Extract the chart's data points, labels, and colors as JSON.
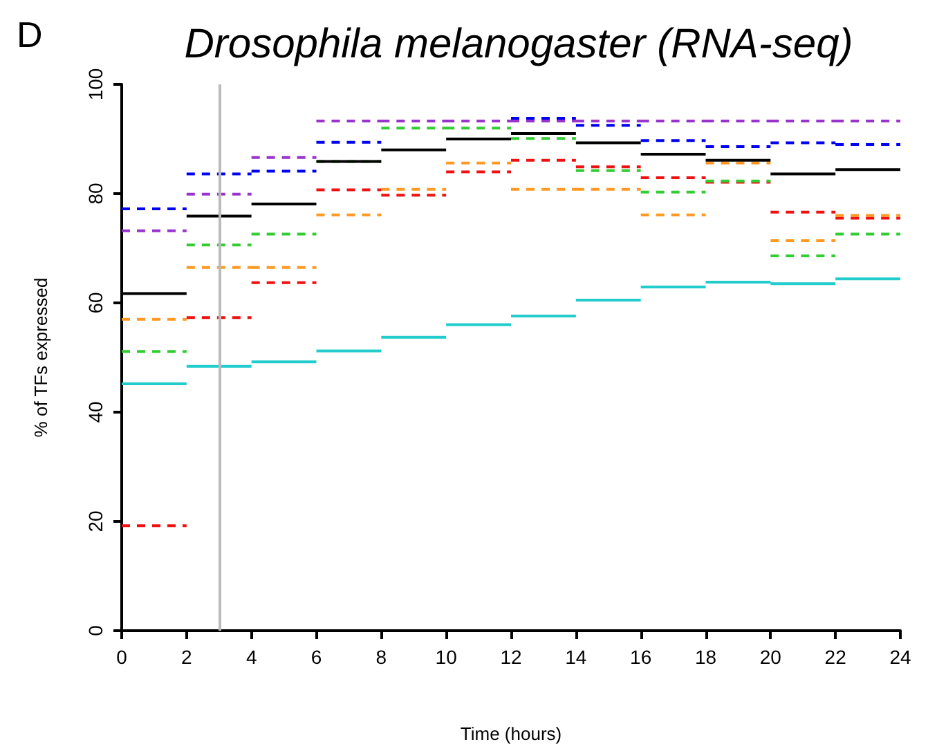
{
  "chart_data": {
    "type": "step",
    "title": "Drosophila melanogaster (RNA-seq)",
    "xlabel": "Time (hours)",
    "ylabel": "% of TFs expressed",
    "annotations": [
      "D"
    ],
    "x": [
      0,
      2,
      4,
      6,
      8,
      10,
      12,
      14,
      16,
      18,
      20,
      22,
      24
    ],
    "xlim": [
      0,
      24
    ],
    "xticks": [
      0,
      2,
      4,
      6,
      8,
      10,
      12,
      14,
      16,
      18,
      20,
      22,
      24
    ],
    "ylim": [
      0,
      100
    ],
    "yticks": [
      0,
      20,
      40,
      60,
      80,
      100
    ],
    "grid": false,
    "marker": "none",
    "ref_lines": [
      {
        "axis": "x",
        "value": 3,
        "color": "#bbbbbb"
      }
    ],
    "series": [
      {
        "color": "#22cccc",
        "line_style": "solid",
        "values": [
          45.2,
          48.4,
          49.2,
          51.2,
          53.7,
          56.0,
          57.6,
          60.5,
          62.9,
          63.8,
          63.5,
          64.4,
          64.4
        ]
      },
      {
        "color": "#ee1111",
        "line_style": "dashed",
        "values": [
          19.2,
          57.3,
          63.7,
          80.7,
          79.7,
          84.0,
          86.1,
          84.9,
          82.9,
          82.1,
          76.6,
          75.5,
          75.5
        ]
      },
      {
        "color": "#ff9922",
        "line_style": "dashed",
        "values": [
          57.0,
          66.5,
          66.5,
          76.1,
          80.8,
          85.6,
          80.8,
          80.8,
          76.1,
          85.6,
          71.4,
          76.0,
          76.0
        ]
      },
      {
        "color": "#33cc33",
        "line_style": "dashed",
        "values": [
          51.1,
          70.6,
          72.6,
          85.9,
          92.0,
          92.0,
          90.1,
          84.2,
          80.3,
          82.3,
          68.6,
          72.6,
          72.6
        ]
      },
      {
        "color": "#0000ee",
        "line_style": "dashed",
        "values": [
          77.2,
          83.6,
          84.1,
          89.4,
          null,
          null,
          93.8,
          92.5,
          89.7,
          88.6,
          89.3,
          89.0,
          89.0
        ]
      },
      {
        "color": "#9933cc",
        "line_style": "dashed",
        "values": [
          73.2,
          79.9,
          86.6,
          93.3,
          93.3,
          93.3,
          93.3,
          93.3,
          93.3,
          93.3,
          93.3,
          93.3,
          93.3
        ]
      },
      {
        "color": "#000000",
        "line_style": "solid",
        "values": [
          61.7,
          75.9,
          78.1,
          85.9,
          88.0,
          90.0,
          91.0,
          89.3,
          87.2,
          86.1,
          83.6,
          84.4,
          84.4
        ]
      }
    ]
  }
}
